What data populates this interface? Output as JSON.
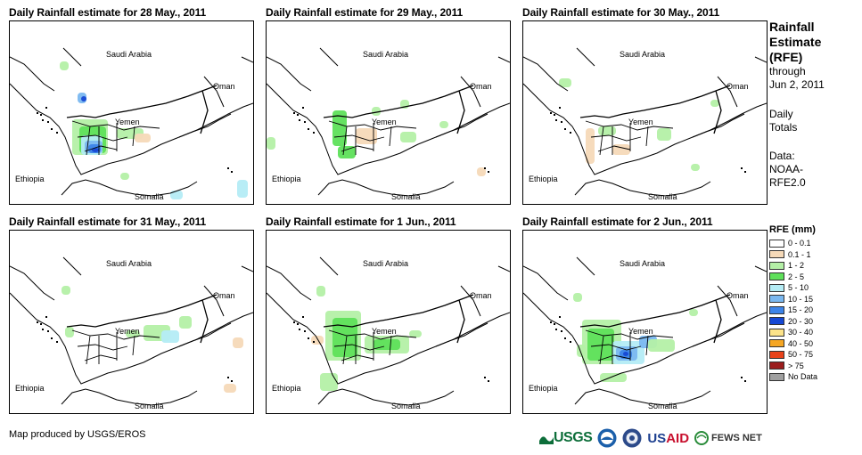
{
  "panels": [
    {
      "title": "Daily Rainfall estimate for 28 May., 2011"
    },
    {
      "title": "Daily Rainfall estimate for 29 May., 2011"
    },
    {
      "title": "Daily Rainfall estimate for 30 May., 2011"
    },
    {
      "title": "Daily Rainfall estimate for 31 May., 2011"
    },
    {
      "title": "Daily Rainfall estimate for 1 Jun., 2011"
    },
    {
      "title": "Daily Rainfall estimate for 2 Jun., 2011"
    }
  ],
  "map_labels": {
    "saudi_arabia": "Saudi Arabia",
    "oman": "Oman",
    "yemen": "Yemen",
    "ethiopia": "Ethiopia",
    "somalia": "Somalia"
  },
  "sidebar": {
    "title_lines": [
      "Rainfall",
      "Estimate",
      "(RFE)"
    ],
    "through_lines": [
      "through",
      "Jun 2, 2011"
    ],
    "totals_lines": [
      "Daily",
      "Totals"
    ],
    "data_lines": [
      "Data:",
      "NOAA-",
      "RFE2.0"
    ]
  },
  "legend": {
    "title": "RFE (mm)",
    "items": [
      {
        "label": "0 - 0.1",
        "color": "#ffffff"
      },
      {
        "label": "0.1 - 1",
        "color": "#f5d9b8"
      },
      {
        "label": "1 - 2",
        "color": "#b4f0a6"
      },
      {
        "label": "2 - 5",
        "color": "#5ee05a"
      },
      {
        "label": "5 - 10",
        "color": "#b4ecf5"
      },
      {
        "label": "10 - 15",
        "color": "#7ab8f0"
      },
      {
        "label": "15 - 20",
        "color": "#3d84e8"
      },
      {
        "label": "20 - 30",
        "color": "#1648d4"
      },
      {
        "label": "30 - 40",
        "color": "#fce38a"
      },
      {
        "label": "40 - 50",
        "color": "#f5a623"
      },
      {
        "label": "50 - 75",
        "color": "#e8421a"
      },
      {
        "label": "> 75",
        "color": "#9b1c1c"
      },
      {
        "label": "No Data",
        "color": "#a0a0a0"
      }
    ]
  },
  "credit": "Map produced by USGS/EROS",
  "logos": {
    "usgs": "USGS",
    "usaid_us": "US",
    "usaid_aid": "AID",
    "fews": "FEWS NET"
  }
}
